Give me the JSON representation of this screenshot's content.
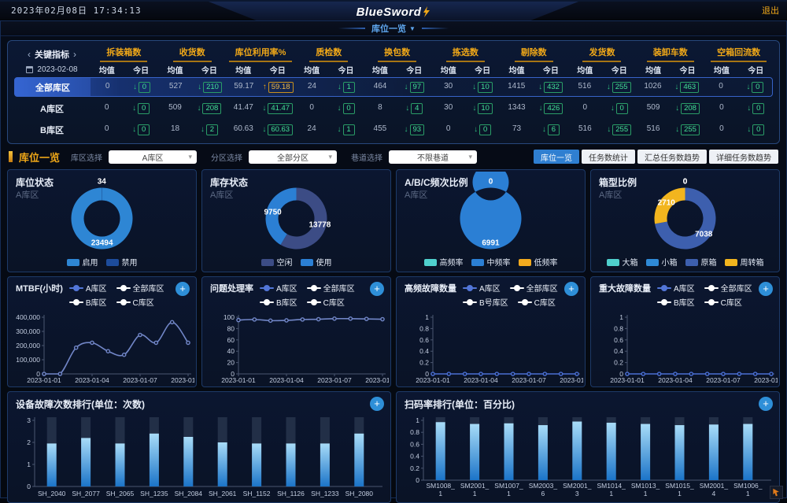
{
  "topbar": {
    "datetime": "2023年02月08日 17:34:13",
    "logo": "BlueSword",
    "logout": "退出"
  },
  "nav": {
    "tab": "库位一览",
    "caret": "▼"
  },
  "icons": {
    "arrow_down": "↓",
    "arrow_up": "↑",
    "chevron_down": "▾",
    "plus": "+",
    "prev": "‹",
    "next": "›"
  },
  "indicators": {
    "title": "关键指标",
    "prev": "‹",
    "next": "›",
    "date": "2023-02-08",
    "sub_mean": "均值",
    "sub_today": "今日",
    "metrics": [
      "拆装箱数",
      "收货数",
      "库位利用率%",
      "质检数",
      "换包数",
      "拣选数",
      "剔除数",
      "发货数",
      "装卸车数",
      "空箱回流数"
    ],
    "rows": [
      {
        "label": "全部库区",
        "cells": [
          [
            "0",
            "0",
            "down"
          ],
          [
            "527",
            "210",
            "down"
          ],
          [
            "59.17",
            "59.18",
            "up"
          ],
          [
            "24",
            "1",
            "down"
          ],
          [
            "464",
            "97",
            "down"
          ],
          [
            "30",
            "10",
            "down"
          ],
          [
            "1415",
            "432",
            "down"
          ],
          [
            "516",
            "255",
            "down"
          ],
          [
            "1026",
            "463",
            "down"
          ],
          [
            "0",
            "0",
            "down"
          ]
        ]
      },
      {
        "label": "A库区",
        "cells": [
          [
            "0",
            "0",
            "down"
          ],
          [
            "509",
            "208",
            "down"
          ],
          [
            "41.47",
            "41.47",
            "down"
          ],
          [
            "0",
            "0",
            "down"
          ],
          [
            "8",
            "4",
            "down"
          ],
          [
            "30",
            "10",
            "down"
          ],
          [
            "1343",
            "426",
            "down"
          ],
          [
            "0",
            "0",
            "down"
          ],
          [
            "509",
            "208",
            "down"
          ],
          [
            "0",
            "0",
            "down"
          ]
        ]
      },
      {
        "label": "B库区",
        "cells": [
          [
            "0",
            "0",
            "down"
          ],
          [
            "18",
            "2",
            "down"
          ],
          [
            "60.63",
            "60.63",
            "down"
          ],
          [
            "24",
            "1",
            "down"
          ],
          [
            "455",
            "93",
            "down"
          ],
          [
            "0",
            "0",
            "down"
          ],
          [
            "73",
            "6",
            "down"
          ],
          [
            "516",
            "255",
            "down"
          ],
          [
            "516",
            "255",
            "down"
          ],
          [
            "0",
            "0",
            "down"
          ]
        ]
      }
    ]
  },
  "filters": {
    "section_title": "库位一览",
    "selects": [
      {
        "label": "库区选择",
        "value": "A库区"
      },
      {
        "label": "分区选择",
        "value": "全部分区"
      },
      {
        "label": "巷道选择",
        "value": "不限巷道"
      }
    ],
    "view_buttons": [
      {
        "label": "库位一览",
        "active": true
      },
      {
        "label": "任务数统计",
        "active": false
      },
      {
        "label": "汇总任务数趋势",
        "active": false
      },
      {
        "label": "详细任务数趋势",
        "active": false
      }
    ]
  },
  "chart_data": [
    {
      "type": "pie",
      "title": "库位状态",
      "subtitle": "A库区",
      "labels": [
        "启用",
        "禁用"
      ],
      "values": [
        23494,
        34
      ],
      "colors": [
        "#2e86d4",
        "#1d4c9c"
      ],
      "legend_position": "bottom"
    },
    {
      "type": "pie",
      "title": "库存状态",
      "subtitle": "A库区",
      "labels": [
        "空闲",
        "使用"
      ],
      "values": [
        13778,
        9750
      ],
      "colors": [
        "#3c4c85",
        "#2b7fd4"
      ],
      "legend_position": "bottom"
    },
    {
      "type": "pie",
      "title": "A/B/C频次比例",
      "subtitle": "A库区",
      "labels": [
        "高频率",
        "中频率",
        "低频率"
      ],
      "values": [
        0,
        6991,
        0
      ],
      "colors": [
        "#4fd0cd",
        "#2b7fd4",
        "#f2aa1e"
      ],
      "legend_position": "bottom"
    },
    {
      "type": "pie",
      "title": "箱型比例",
      "subtitle": "A库区",
      "labels": [
        "大箱",
        "小箱",
        "原箱",
        "周转箱"
      ],
      "values": [
        0,
        0,
        7038,
        2710
      ],
      "colors": [
        "#4fd0cd",
        "#2f8ad6",
        "#3d5fae",
        "#f2b51e"
      ],
      "legend_position": "bottom"
    },
    {
      "type": "line",
      "title": "MTBF(小时)",
      "legend": [
        "A库区",
        "全部库区",
        "B库区",
        "C库区"
      ],
      "legend_colors": [
        "#5276d8",
        "#ffffff",
        "#ffffff",
        "#ffffff"
      ],
      "line_color": "#7186c7",
      "x": [
        "2023-01-01",
        "2023-01-02",
        "2023-01-03",
        "2023-01-04",
        "2023-01-05",
        "2023-01-06",
        "2023-01-07",
        "2023-01-08",
        "2023-01-09",
        "2023-01-10"
      ],
      "xticks": [
        "2023-01-01",
        "2023-01-04",
        "2023-01-07",
        "2023-01-10"
      ],
      "series": [
        {
          "name": "A库区",
          "values": [
            0,
            0,
            185000,
            220000,
            160000,
            135000,
            275000,
            220000,
            365000,
            220000
          ]
        }
      ],
      "ylim": [
        0,
        400000
      ],
      "yticks": [
        "0",
        "100,000",
        "200,000",
        "300,000",
        "400,000"
      ]
    },
    {
      "type": "line",
      "title": "问题处理率",
      "legend": [
        "A库区",
        "全部库区",
        "B库区",
        "C库区"
      ],
      "legend_colors": [
        "#5276d8",
        "#ffffff",
        "#ffffff",
        "#ffffff"
      ],
      "line_color": "#7186c7",
      "x": [
        "2023-01-01",
        "2023-01-02",
        "2023-01-03",
        "2023-01-04",
        "2023-01-05",
        "2023-01-06",
        "2023-01-07",
        "2023-01-08",
        "2023-01-09",
        "2023-01-10"
      ],
      "xticks": [
        "2023-01-01",
        "2023-01-04",
        "2023-01-07",
        "2023-01-10"
      ],
      "series": [
        {
          "name": "A库区",
          "values": [
            95,
            96,
            94,
            94.5,
            96,
            96.5,
            97.5,
            97.5,
            97,
            96.5
          ]
        }
      ],
      "ylim": [
        0,
        100
      ],
      "yticks": [
        "0",
        "20",
        "40",
        "60",
        "80",
        "100"
      ]
    },
    {
      "type": "line",
      "title": "高频故障数量",
      "legend": [
        "A库区",
        "全部库区",
        "B号库区",
        "C库区"
      ],
      "legend_colors": [
        "#5276d8",
        "#ffffff",
        "#ffffff",
        "#ffffff"
      ],
      "line_color": "#4a6fd4",
      "x": [
        "2023-01-01",
        "2023-01-02",
        "2023-01-03",
        "2023-01-04",
        "2023-01-05",
        "2023-01-06",
        "2023-01-07",
        "2023-01-08",
        "2023-01-09",
        "2023-01-10"
      ],
      "xticks": [
        "2023-01-01",
        "2023-01-04",
        "2023-01-07",
        "2023-01-10"
      ],
      "series": [
        {
          "name": "A库区",
          "values": [
            0,
            0,
            0,
            0,
            0,
            0,
            0,
            0,
            0,
            0
          ]
        }
      ],
      "ylim": [
        0,
        1
      ],
      "yticks": [
        "0",
        "0.2",
        "0.4",
        "0.6",
        "0.8",
        "1"
      ]
    },
    {
      "type": "line",
      "title": "重大故障数量",
      "legend": [
        "A库区",
        "全部库区",
        "B库区",
        "C库区"
      ],
      "legend_colors": [
        "#5276d8",
        "#ffffff",
        "#ffffff",
        "#ffffff"
      ],
      "line_color": "#4a6fd4",
      "x": [
        "2023-01-01",
        "2023-01-02",
        "2023-01-03",
        "2023-01-04",
        "2023-01-05",
        "2023-01-06",
        "2023-01-07",
        "2023-01-08",
        "2023-01-09",
        "2023-01-10"
      ],
      "xticks": [
        "2023-01-01",
        "2023-01-04",
        "2023-01-07",
        "2023-01-10"
      ],
      "series": [
        {
          "name": "A库区",
          "values": [
            0,
            0,
            0,
            0,
            0,
            0,
            0,
            0,
            0,
            0
          ]
        }
      ],
      "ylim": [
        0,
        1
      ],
      "yticks": [
        "0",
        "0.2",
        "0.4",
        "0.6",
        "0.8",
        "1"
      ]
    },
    {
      "type": "bar",
      "title": "设备故障次数排行(单位：次数)",
      "categories": [
        "SH_2040",
        "SH_2077",
        "SH_2065",
        "SH_1235",
        "SH_2084",
        "SH_2061",
        "SH_1152",
        "SH_1126",
        "SH_1233",
        "SH_2080"
      ],
      "values": [
        1.95,
        2.2,
        1.95,
        2.4,
        2.25,
        2.0,
        1.95,
        1.95,
        1.95,
        2.4
      ],
      "ylim": [
        0,
        3
      ],
      "yticks": [
        "0",
        "1",
        "2",
        "3"
      ],
      "two_line_labels": false
    },
    {
      "type": "bar",
      "title": "扫码率排行(单位：百分比)",
      "categories": [
        "SM1008_1",
        "SM2001_1",
        "SM1007_1",
        "SM2003_6",
        "SM2001_3",
        "SM1014_1",
        "SM1013_1",
        "SM1015_1",
        "SM2001_4",
        "SM1006_1"
      ],
      "values": [
        0.97,
        0.94,
        0.95,
        0.92,
        0.98,
        0.96,
        0.94,
        0.92,
        0.93,
        0.94
      ],
      "ylim": [
        0,
        1
      ],
      "yticks": [
        "0",
        "0.2",
        "0.4",
        "0.6",
        "0.8",
        "1"
      ],
      "two_line_labels": true
    }
  ]
}
